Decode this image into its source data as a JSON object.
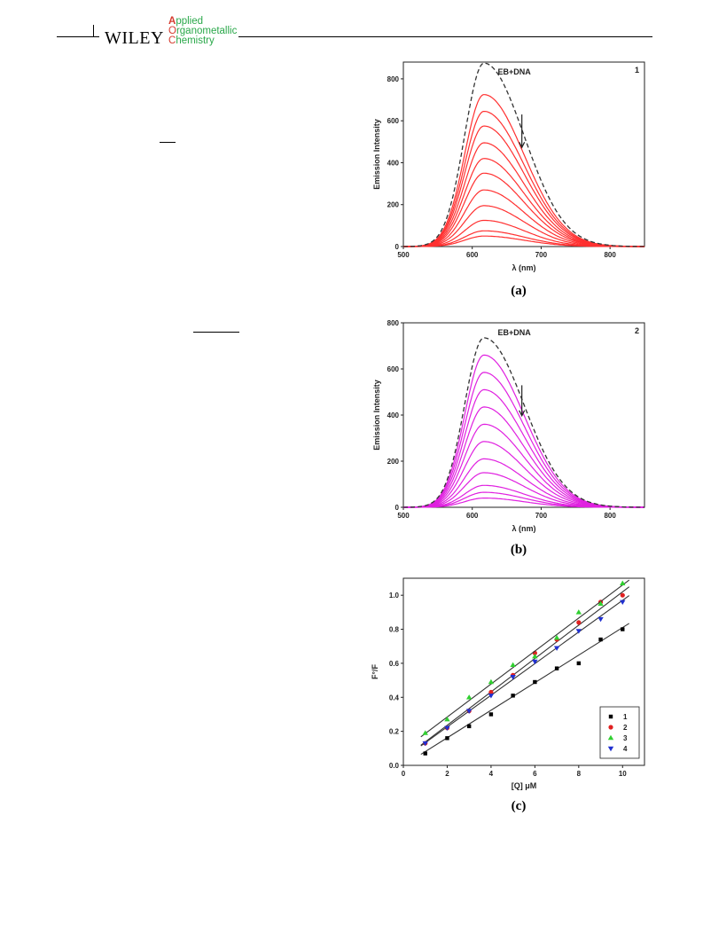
{
  "header": {
    "publisher": "WILEY",
    "journal_lines": [
      {
        "first": "A",
        "rest": "pplied"
      },
      {
        "first": "O",
        "rest": "rganometallic"
      },
      {
        "first": "C",
        "rest": "hemistry"
      }
    ]
  },
  "figure": {
    "panels": [
      {
        "caption": "(a)",
        "chart_data": {
          "type": "line",
          "panel_number": "1",
          "annotation": "EB+DNA",
          "xlabel": "λ (nm)",
          "ylabel": "Emission Intensity",
          "xlim": [
            500,
            850
          ],
          "ylim": [
            0,
            880
          ],
          "xticks": [
            500,
            600,
            700,
            800
          ],
          "yticks": [
            0,
            200,
            400,
            600,
            800
          ],
          "peak_x": 617,
          "reference_peak": 875,
          "peaks": [
            725,
            645,
            575,
            495,
            420,
            350,
            270,
            195,
            125,
            75,
            50
          ],
          "series_color": "#ff3030",
          "reference_style": "dashed",
          "arrow": "down"
        }
      },
      {
        "caption": "(b)",
        "chart_data": {
          "type": "line",
          "panel_number": "2",
          "annotation": "EB+DNA",
          "xlabel": "λ (nm)",
          "ylabel": "Emission Intensity",
          "xlim": [
            500,
            850
          ],
          "ylim": [
            0,
            800
          ],
          "xticks": [
            500,
            600,
            700,
            800
          ],
          "yticks": [
            0,
            200,
            400,
            600,
            800
          ],
          "peak_x": 617,
          "reference_peak": 735,
          "peaks": [
            660,
            585,
            510,
            435,
            360,
            285,
            210,
            150,
            95,
            65,
            40
          ],
          "series_color": "#e020e0",
          "reference_style": "dashed",
          "arrow": "down"
        }
      },
      {
        "caption": "(c)",
        "chart_data": {
          "type": "scatter",
          "xlabel": "[Q] μM",
          "ylabel": "F°/F",
          "xlim": [
            0,
            11
          ],
          "ylim": [
            0,
            1.1
          ],
          "xticks": [
            0,
            2,
            4,
            6,
            8,
            10
          ],
          "yticks": [
            0.0,
            0.2,
            0.4,
            0.6,
            0.8,
            1.0
          ],
          "legend_position": "bottom-right",
          "series": [
            {
              "name": "1",
              "color": "#000000",
              "marker": "square",
              "x": [
                1,
                2,
                3,
                4,
                5,
                6,
                7,
                8,
                9,
                10
              ],
              "y": [
                0.07,
                0.16,
                0.23,
                0.3,
                0.41,
                0.49,
                0.57,
                0.6,
                0.74,
                0.8
              ],
              "fit": [
                0.0,
                0.081
              ]
            },
            {
              "name": "2",
              "color": "#e02020",
              "marker": "circle",
              "x": [
                1,
                2,
                3,
                4,
                5,
                6,
                7,
                8,
                9,
                10
              ],
              "y": [
                0.13,
                0.22,
                0.32,
                0.43,
                0.53,
                0.66,
                0.74,
                0.84,
                0.96,
                1.0
              ],
              "fit": [
                0.04,
                0.098
              ]
            },
            {
              "name": "3",
              "color": "#30d030",
              "marker": "triangle-up",
              "x": [
                1,
                2,
                3,
                4,
                5,
                6,
                7,
                8,
                9,
                10
              ],
              "y": [
                0.19,
                0.27,
                0.4,
                0.49,
                0.59,
                0.64,
                0.75,
                0.9,
                0.95,
                1.07
              ],
              "fit": [
                0.09,
                0.097
              ]
            },
            {
              "name": "4",
              "color": "#2030d0",
              "marker": "triangle-down",
              "x": [
                1,
                2,
                3,
                4,
                5,
                6,
                7,
                8,
                9,
                10
              ],
              "y": [
                0.13,
                0.22,
                0.32,
                0.41,
                0.52,
                0.61,
                0.69,
                0.79,
                0.86,
                0.96
              ],
              "fit": [
                0.04,
                0.093
              ]
            }
          ]
        }
      }
    ]
  }
}
